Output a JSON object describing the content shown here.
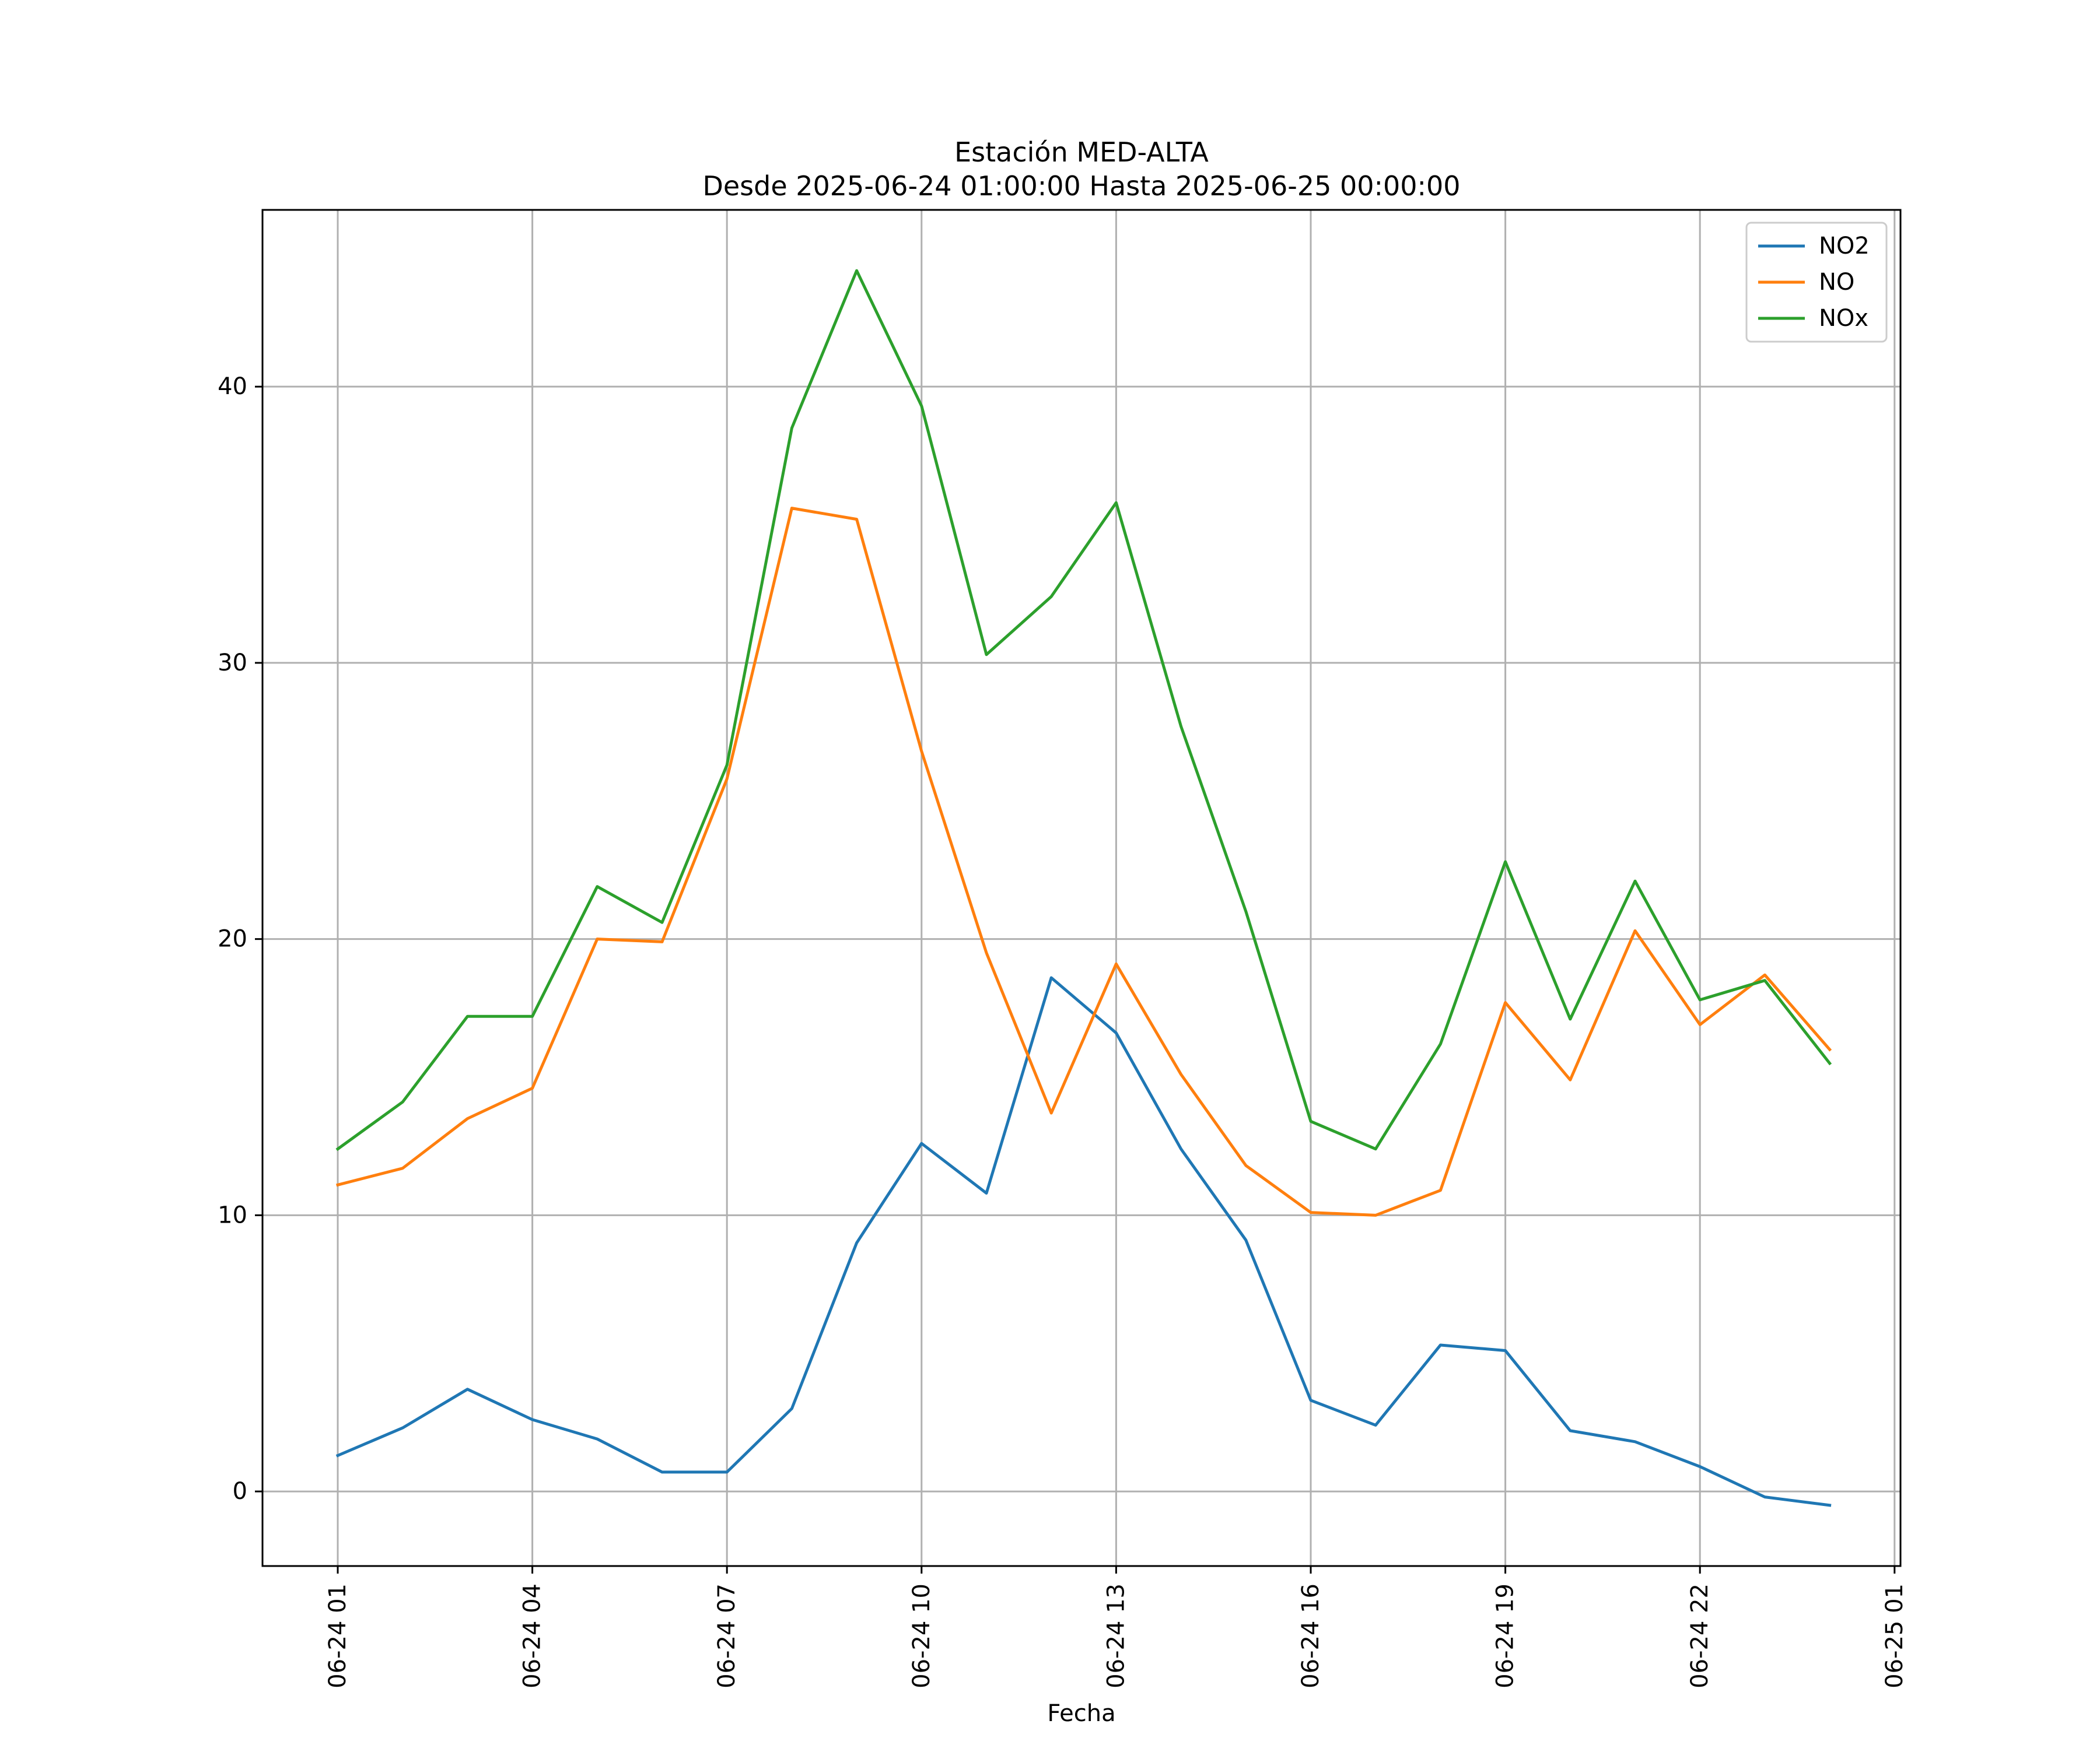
{
  "chart_data": {
    "type": "line",
    "title": "Estación MED-ALTA",
    "subtitle": "Desde 2025-06-24 01:00:00 Hasta 2025-06-25 00:00:00",
    "xlabel": "Fecha",
    "ylabel": "",
    "x": [
      "2025-06-24 01:00",
      "2025-06-24 02:00",
      "2025-06-24 03:00",
      "2025-06-24 04:00",
      "2025-06-24 05:00",
      "2025-06-24 06:00",
      "2025-06-24 07:00",
      "2025-06-24 08:00",
      "2025-06-24 09:00",
      "2025-06-24 10:00",
      "2025-06-24 11:00",
      "2025-06-24 12:00",
      "2025-06-24 13:00",
      "2025-06-24 14:00",
      "2025-06-24 15:00",
      "2025-06-24 16:00",
      "2025-06-24 17:00",
      "2025-06-24 18:00",
      "2025-06-24 19:00",
      "2025-06-24 20:00",
      "2025-06-24 21:00",
      "2025-06-24 22:00",
      "2025-06-24 23:00",
      "2025-06-25 00:00"
    ],
    "series": [
      {
        "name": "NO2",
        "color": "#1f77b4",
        "values": [
          1.3,
          2.3,
          3.7,
          2.6,
          1.9,
          0.7,
          0.7,
          3.0,
          9.0,
          12.6,
          10.8,
          18.6,
          16.6,
          12.4,
          9.1,
          3.3,
          2.4,
          5.3,
          5.1,
          2.2,
          1.8,
          0.9,
          -0.2,
          -0.5
        ]
      },
      {
        "name": "NO",
        "color": "#ff7f0e",
        "values": [
          11.1,
          11.7,
          13.5,
          14.6,
          20.0,
          19.9,
          25.8,
          35.6,
          35.2,
          26.8,
          19.5,
          13.7,
          19.1,
          15.1,
          11.8,
          10.1,
          10.0,
          10.9,
          17.7,
          14.9,
          20.3,
          16.9,
          18.7,
          16.0
        ]
      },
      {
        "name": "NOx",
        "color": "#2ca02c",
        "values": [
          12.4,
          14.1,
          17.2,
          17.2,
          21.9,
          20.6,
          26.3,
          38.5,
          44.2,
          39.3,
          30.3,
          32.4,
          35.8,
          27.7,
          21.0,
          13.4,
          12.4,
          16.2,
          22.8,
          17.1,
          22.1,
          17.8,
          18.5,
          15.5
        ]
      }
    ],
    "ylim": [
      -2.7,
      46.4
    ],
    "yticks": [
      0,
      10,
      20,
      30,
      40
    ],
    "ytick_labels": [
      "0",
      "10",
      "20",
      "30",
      "40"
    ],
    "xticks": [
      "2025-06-24 01:00",
      "2025-06-24 04:00",
      "2025-06-24 07:00",
      "2025-06-24 10:00",
      "2025-06-24 13:00",
      "2025-06-24 16:00",
      "2025-06-24 19:00",
      "2025-06-24 22:00",
      "2025-06-25 01:00"
    ],
    "xtick_labels": [
      "06-24 01",
      "06-24 04",
      "06-24 07",
      "06-24 10",
      "06-24 13",
      "06-24 16",
      "06-24 19",
      "06-24 22",
      "06-25 01"
    ],
    "grid": true,
    "legend_position": "top-right"
  }
}
